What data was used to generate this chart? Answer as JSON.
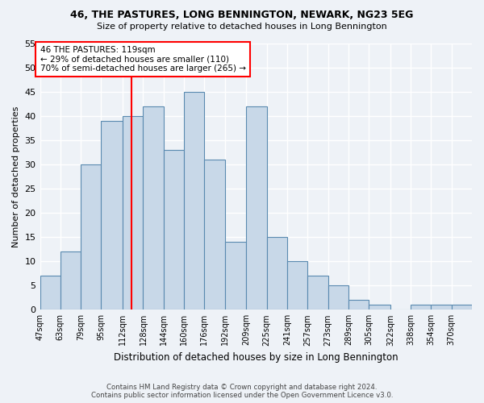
{
  "title1": "46, THE PASTURES, LONG BENNINGTON, NEWARK, NG23 5EG",
  "title2": "Size of property relative to detached houses in Long Bennington",
  "xlabel": "Distribution of detached houses by size in Long Bennington",
  "ylabel": "Number of detached properties",
  "footer1": "Contains HM Land Registry data © Crown copyright and database right 2024.",
  "footer2": "Contains public sector information licensed under the Open Government Licence v3.0.",
  "bin_labels": [
    "47sqm",
    "63sqm",
    "79sqm",
    "95sqm",
    "112sqm",
    "128sqm",
    "144sqm",
    "160sqm",
    "176sqm",
    "192sqm",
    "209sqm",
    "225sqm",
    "241sqm",
    "257sqm",
    "273sqm",
    "289sqm",
    "305sqm",
    "322sqm",
    "338sqm",
    "354sqm",
    "370sqm"
  ],
  "bar_heights": [
    7,
    12,
    30,
    39,
    40,
    42,
    33,
    45,
    31,
    14,
    42,
    15,
    10,
    7,
    5,
    2,
    1,
    0,
    1,
    1,
    1
  ],
  "bar_color": "#c8d8e8",
  "bar_edge_color": "#5a8ab0",
  "vline_color": "red",
  "vline_x_index": 4,
  "annotation_line1": "46 THE PASTURES: 119sqm",
  "annotation_line2": "← 29% of detached houses are smaller (110)",
  "annotation_line3": "70% of semi-detached houses are larger (265) →",
  "annotation_box_color": "white",
  "annotation_box_edge": "red",
  "ylim": [
    0,
    55
  ],
  "yticks": [
    0,
    5,
    10,
    15,
    20,
    25,
    30,
    35,
    40,
    45,
    50,
    55
  ],
  "bin_edges": [
    47,
    63,
    79,
    95,
    112,
    128,
    144,
    160,
    176,
    192,
    209,
    225,
    241,
    257,
    273,
    289,
    305,
    322,
    338,
    354,
    370,
    386
  ],
  "bg_color": "#eef2f7",
  "grid_color": "#ffffff"
}
